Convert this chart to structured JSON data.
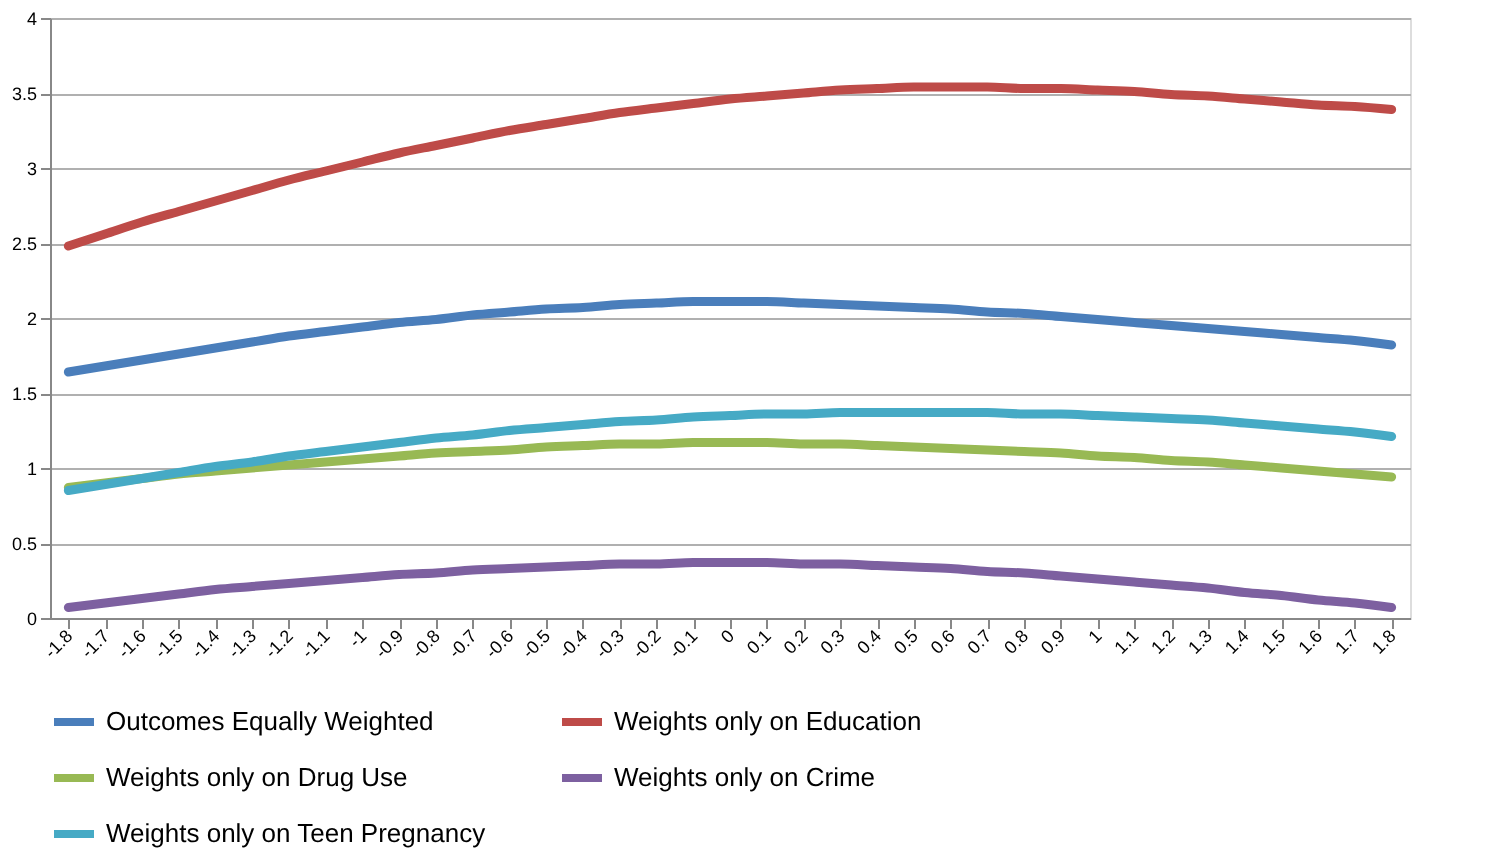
{
  "chart_data": {
    "type": "line",
    "categories": [
      "-1.8",
      "-1.7",
      "-1.6",
      "-1.5",
      "-1.4",
      "-1.3",
      "-1.2",
      "-1.1",
      "-1",
      "-0.9",
      "-0.8",
      "-0.7",
      "-0.6",
      "-0.5",
      "-0.4",
      "-0.3",
      "-0.2",
      "-0.1",
      "0",
      "0.1",
      "0.2",
      "0.3",
      "0.4",
      "0.5",
      "0.6",
      "0.7",
      "0.8",
      "0.9",
      "1",
      "1.1",
      "1.2",
      "1.3",
      "1.4",
      "1.5",
      "1.6",
      "1.7",
      "1.8"
    ],
    "series": [
      {
        "name": "Outcomes Equally Weighted",
        "color": "#4a7ebb",
        "values": [
          1.64,
          1.68,
          1.72,
          1.76,
          1.8,
          1.84,
          1.88,
          1.91,
          1.94,
          1.97,
          1.99,
          2.02,
          2.04,
          2.06,
          2.07,
          2.09,
          2.1,
          2.11,
          2.11,
          2.11,
          2.1,
          2.09,
          2.08,
          2.07,
          2.06,
          2.04,
          2.03,
          2.01,
          1.99,
          1.97,
          1.95,
          1.93,
          1.91,
          1.89,
          1.87,
          1.85,
          1.82
        ]
      },
      {
        "name": "Weights only on Education",
        "color": "#be4b48",
        "values": [
          2.48,
          2.56,
          2.64,
          2.71,
          2.78,
          2.85,
          2.92,
          2.98,
          3.04,
          3.1,
          3.15,
          3.2,
          3.25,
          3.29,
          3.33,
          3.37,
          3.4,
          3.43,
          3.46,
          3.48,
          3.5,
          3.52,
          3.53,
          3.54,
          3.54,
          3.54,
          3.53,
          3.53,
          3.52,
          3.51,
          3.49,
          3.48,
          3.46,
          3.44,
          3.42,
          3.41,
          3.39
        ]
      },
      {
        "name": "Weights only on Drug Use",
        "color": "#98b954",
        "values": [
          0.87,
          0.9,
          0.93,
          0.96,
          0.98,
          1.0,
          1.02,
          1.04,
          1.06,
          1.08,
          1.1,
          1.11,
          1.12,
          1.14,
          1.15,
          1.16,
          1.16,
          1.17,
          1.17,
          1.17,
          1.16,
          1.16,
          1.15,
          1.14,
          1.13,
          1.12,
          1.11,
          1.1,
          1.08,
          1.07,
          1.05,
          1.04,
          1.02,
          1.0,
          0.98,
          0.96,
          0.94
        ]
      },
      {
        "name": "Weights only on Crime",
        "color": "#7d60a0",
        "values": [
          0.07,
          0.1,
          0.13,
          0.16,
          0.19,
          0.21,
          0.23,
          0.25,
          0.27,
          0.29,
          0.3,
          0.32,
          0.33,
          0.34,
          0.35,
          0.36,
          0.36,
          0.37,
          0.37,
          0.37,
          0.36,
          0.36,
          0.35,
          0.34,
          0.33,
          0.31,
          0.3,
          0.28,
          0.26,
          0.24,
          0.22,
          0.2,
          0.17,
          0.15,
          0.12,
          0.1,
          0.07
        ]
      },
      {
        "name": "Weights only on Teen Pregnancy",
        "color": "#46aac5",
        "values": [
          0.85,
          0.89,
          0.93,
          0.97,
          1.01,
          1.04,
          1.08,
          1.11,
          1.14,
          1.17,
          1.2,
          1.22,
          1.25,
          1.27,
          1.29,
          1.31,
          1.32,
          1.34,
          1.35,
          1.36,
          1.36,
          1.37,
          1.37,
          1.37,
          1.37,
          1.37,
          1.36,
          1.36,
          1.35,
          1.34,
          1.33,
          1.32,
          1.3,
          1.28,
          1.26,
          1.24,
          1.21
        ]
      }
    ],
    "ylim": [
      0,
      4
    ],
    "yticks": [
      0,
      0.5,
      1,
      1.5,
      2,
      2.5,
      3,
      3.5,
      4
    ],
    "grid": "y",
    "legend": "bottom",
    "marker": "none",
    "line_style": "solid"
  }
}
